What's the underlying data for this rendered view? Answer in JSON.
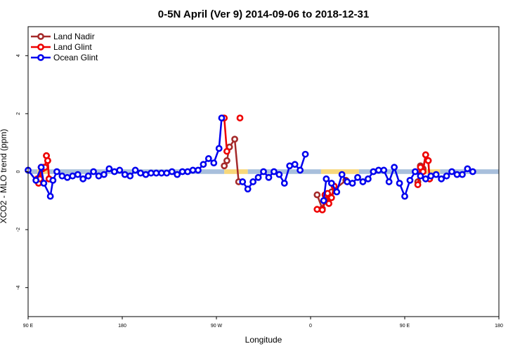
{
  "chart_data": {
    "type": "line",
    "title": "0-5N April (Ver 9)   2014-09-06 to 2018-12-31",
    "xlabel": "Longitude",
    "ylabel": "XCO2 - MLO trend (ppm)",
    "xlim": [
      90,
      450
    ],
    "ylim": [
      -5,
      5
    ],
    "x_ticks": [
      {
        "value": 90,
        "label": "90 E"
      },
      {
        "value": 162,
        "label": "180"
      },
      {
        "value": 234,
        "label": "90 W"
      },
      {
        "value": 306,
        "label": "0"
      },
      {
        "value": 378,
        "label": "90 E"
      },
      {
        "value": 450,
        "label": "180"
      }
    ],
    "y_ticks": [
      {
        "value": -4,
        "label": "-4"
      },
      {
        "value": -2,
        "label": "-2"
      },
      {
        "value": 0,
        "label": "0"
      },
      {
        "value": 2,
        "label": "2"
      },
      {
        "value": 4,
        "label": "4"
      }
    ],
    "legend_position": "top-left",
    "surface_band": {
      "y_range": [
        -0.08,
        0.08
      ],
      "colors": {
        "ocean": "#a8bfdc",
        "land": "#f7d77a"
      },
      "segments": [
        {
          "type": "ocean",
          "from": 90,
          "to": 97
        },
        {
          "type": "land",
          "from": 97,
          "to": 105
        },
        {
          "type": "ocean",
          "from": 105,
          "to": 240
        },
        {
          "type": "land",
          "from": 240,
          "to": 258
        },
        {
          "type": "ocean",
          "from": 258,
          "to": 314
        },
        {
          "type": "land",
          "from": 314,
          "to": 343
        },
        {
          "type": "ocean",
          "from": 343,
          "to": 389
        },
        {
          "type": "land",
          "from": 389,
          "to": 405
        },
        {
          "type": "ocean",
          "from": 405,
          "to": 450
        }
      ]
    },
    "series": [
      {
        "name": "Land Nadir",
        "color": "#a52a2a",
        "segments": [
          [
            [
              99,
              -0.2
            ],
            [
              100,
              0.15
            ],
            [
              101,
              0.1
            ],
            [
              102,
              0.15
            ],
            [
              103,
              0.15
            ],
            [
              104,
              0.55
            ],
            [
              105,
              0.38
            ],
            [
              106,
              -0.25
            ]
          ],
          [
            [
              240,
              0.2
            ],
            [
              242,
              0.38
            ],
            [
              244,
              0.85
            ],
            [
              248,
              1.12
            ],
            [
              251,
              -0.35
            ]
          ],
          [
            [
              311,
              -0.8
            ],
            [
              315,
              -1.28
            ],
            [
              318,
              -1.0
            ],
            [
              320,
              -0.9
            ],
            [
              322,
              -0.7
            ],
            [
              333,
              -0.3
            ]
          ],
          [
            [
              388,
              -0.35
            ],
            [
              390,
              0.2
            ],
            [
              392,
              0.1
            ],
            [
              394,
              0.58
            ],
            [
              396,
              0.38
            ],
            [
              397,
              -0.25
            ]
          ]
        ]
      },
      {
        "name": "Land Glint",
        "color": "#ee0000",
        "segments": [
          [
            [
              97,
              -0.25
            ],
            [
              98,
              -0.4
            ],
            [
              99,
              -0.25
            ],
            [
              100,
              0.15
            ],
            [
              101,
              0.1
            ],
            [
              102,
              0.15
            ],
            [
              103,
              0.15
            ],
            [
              104,
              0.55
            ],
            [
              105,
              0.38
            ],
            [
              106,
              -0.25
            ]
          ],
          [
            [
              239,
              1.85
            ],
            [
              240,
              1.85
            ],
            [
              242,
              0.7
            ]
          ],
          [
            [
              252,
              1.85
            ]
          ],
          [
            [
              311,
              -1.3
            ],
            [
              315,
              -1.32
            ],
            [
              317,
              -0.8
            ],
            [
              319,
              -0.75
            ],
            [
              320,
              -1.1
            ],
            [
              322,
              -0.9
            ],
            [
              324,
              -0.5
            ]
          ],
          [
            [
              388,
              -0.45
            ],
            [
              390,
              0.15
            ],
            [
              392,
              0.0
            ],
            [
              394,
              0.58
            ],
            [
              396,
              0.38
            ],
            [
              397,
              -0.25
            ]
          ]
        ]
      },
      {
        "name": "Ocean Glint",
        "color": "#0000ee",
        "segments": [
          [
            [
              90,
              0.05
            ],
            [
              96,
              -0.3
            ],
            [
              100,
              0.15
            ],
            [
              102,
              -0.4
            ],
            [
              107,
              -0.85
            ],
            [
              109,
              -0.3
            ],
            [
              112,
              0.0
            ],
            [
              116,
              -0.15
            ],
            [
              120,
              -0.2
            ],
            [
              124,
              -0.15
            ],
            [
              128,
              -0.1
            ],
            [
              132,
              -0.25
            ],
            [
              136,
              -0.15
            ],
            [
              140,
              0.0
            ],
            [
              144,
              -0.15
            ],
            [
              148,
              -0.1
            ],
            [
              152,
              0.1
            ],
            [
              156,
              0.0
            ],
            [
              160,
              0.05
            ],
            [
              164,
              -0.1
            ],
            [
              168,
              -0.15
            ],
            [
              172,
              0.05
            ],
            [
              176,
              -0.05
            ],
            [
              180,
              -0.1
            ],
            [
              184,
              -0.05
            ],
            [
              188,
              -0.05
            ],
            [
              192,
              -0.05
            ],
            [
              196,
              -0.05
            ],
            [
              200,
              0.0
            ],
            [
              204,
              -0.1
            ],
            [
              208,
              0.0
            ],
            [
              212,
              0.0
            ],
            [
              216,
              0.05
            ],
            [
              220,
              0.05
            ],
            [
              224,
              0.25
            ],
            [
              228,
              0.45
            ],
            [
              232,
              0.3
            ],
            [
              236,
              0.8
            ],
            [
              238,
              1.85
            ]
          ],
          [
            [
              254,
              -0.35
            ],
            [
              258,
              -0.6
            ],
            [
              262,
              -0.35
            ],
            [
              266,
              -0.2
            ],
            [
              270,
              0.0
            ],
            [
              274,
              -0.2
            ],
            [
              278,
              0.0
            ],
            [
              282,
              -0.1
            ],
            [
              286,
              -0.4
            ],
            [
              290,
              0.2
            ],
            [
              294,
              0.25
            ],
            [
              298,
              0.05
            ],
            [
              302,
              0.6
            ]
          ],
          [
            [
              316,
              -1.0
            ],
            [
              318,
              -0.25
            ],
            [
              322,
              -0.4
            ],
            [
              326,
              -0.7
            ],
            [
              330,
              -0.1
            ],
            [
              334,
              -0.35
            ],
            [
              338,
              -0.4
            ],
            [
              342,
              -0.2
            ],
            [
              346,
              -0.35
            ],
            [
              350,
              -0.25
            ],
            [
              354,
              0.0
            ],
            [
              358,
              0.05
            ],
            [
              362,
              0.05
            ],
            [
              366,
              -0.35
            ],
            [
              370,
              0.15
            ],
            [
              374,
              -0.4
            ],
            [
              378,
              -0.85
            ],
            [
              382,
              -0.3
            ],
            [
              386,
              0.0
            ],
            [
              390,
              -0.15
            ],
            [
              394,
              -0.25
            ],
            [
              398,
              -0.15
            ],
            [
              402,
              -0.1
            ],
            [
              406,
              -0.25
            ],
            [
              410,
              -0.15
            ],
            [
              414,
              0.0
            ],
            [
              418,
              -0.1
            ],
            [
              422,
              -0.1
            ],
            [
              426,
              0.1
            ],
            [
              430,
              0.0
            ]
          ]
        ]
      }
    ]
  }
}
